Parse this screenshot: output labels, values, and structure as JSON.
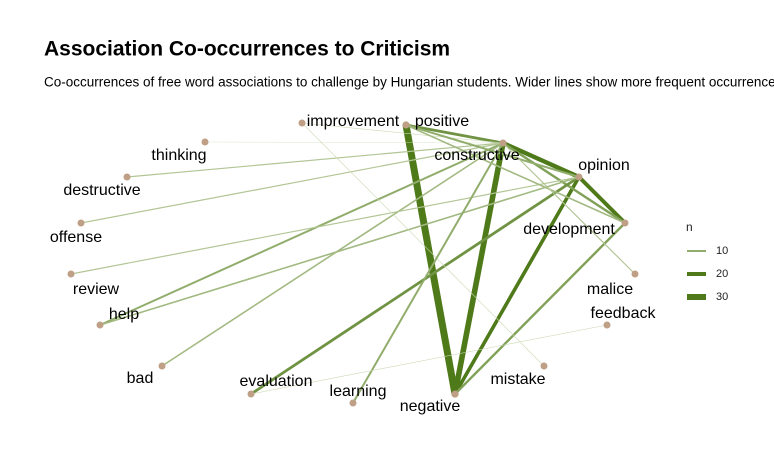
{
  "title": "Association Co-occurrences to Criticism",
  "subtitle": "Co-occurrences of free word associations to challenge by Hungarian students. Wider lines show more frequent occurrences be",
  "legend": {
    "title": "n",
    "values": [
      10,
      20,
      30
    ]
  },
  "nodes": [
    {
      "label": "improvement"
    },
    {
      "label": "positive"
    },
    {
      "label": "thinking"
    },
    {
      "label": "constructive"
    },
    {
      "label": "opinion"
    },
    {
      "label": "destructive"
    },
    {
      "label": "offense"
    },
    {
      "label": "development"
    },
    {
      "label": "review"
    },
    {
      "label": "malice"
    },
    {
      "label": "help"
    },
    {
      "label": "feedback"
    },
    {
      "label": "bad"
    },
    {
      "label": "mistake"
    },
    {
      "label": "evaluation"
    },
    {
      "label": "learning"
    },
    {
      "label": "negative"
    }
  ],
  "edges": [
    {
      "source": 1,
      "target": 16,
      "n": 35
    },
    {
      "source": 3,
      "target": 16,
      "n": 28
    },
    {
      "source": 4,
      "target": 16,
      "n": 18
    },
    {
      "source": 3,
      "target": 4,
      "n": 22
    },
    {
      "source": 1,
      "target": 3,
      "n": 14
    },
    {
      "source": 4,
      "target": 7,
      "n": 20
    },
    {
      "source": 3,
      "target": 7,
      "n": 12
    },
    {
      "source": 7,
      "target": 16,
      "n": 12
    },
    {
      "source": 4,
      "target": 14,
      "n": 14
    },
    {
      "source": 3,
      "target": 10,
      "n": 10
    },
    {
      "source": 4,
      "target": 10,
      "n": 8
    },
    {
      "source": 3,
      "target": 12,
      "n": 8
    },
    {
      "source": 3,
      "target": 6,
      "n": 6
    },
    {
      "source": 3,
      "target": 5,
      "n": 6
    },
    {
      "source": 4,
      "target": 8,
      "n": 6
    },
    {
      "source": 2,
      "target": 3,
      "n": 2
    },
    {
      "source": 0,
      "target": 13,
      "n": 3
    },
    {
      "source": 0,
      "target": 3,
      "n": 3
    },
    {
      "source": 15,
      "target": 3,
      "n": 10
    },
    {
      "source": 14,
      "target": 11,
      "n": 3
    },
    {
      "source": 1,
      "target": 4,
      "n": 10
    },
    {
      "source": 1,
      "target": 7,
      "n": 8
    },
    {
      "source": 3,
      "target": 9,
      "n": 6
    }
  ]
}
